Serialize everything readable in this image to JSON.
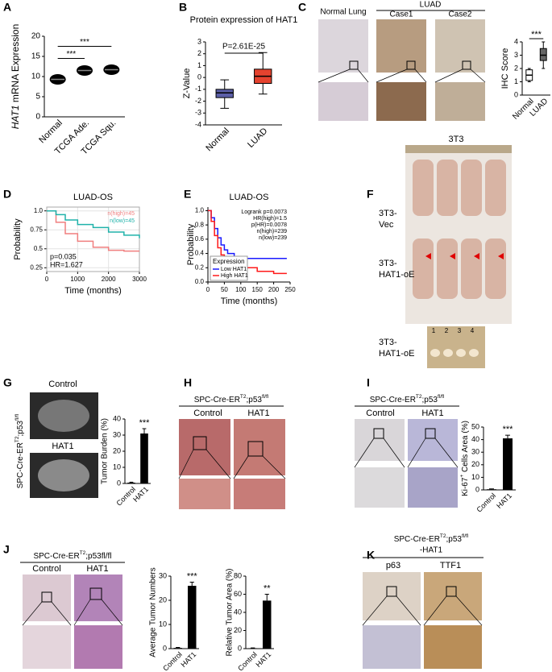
{
  "panels": {
    "A": {
      "letter": "A",
      "chart": {
        "type": "dot",
        "ylabel": [
          "HAT1",
          " mRNA Expression"
        ],
        "categories": [
          "Normal",
          "TCGA Ade.",
          "TCGA Squ."
        ],
        "values": [
          9.3,
          11.5,
          11.7
        ],
        "ylim": [
          0,
          20
        ],
        "yticks": [
          0,
          5,
          10,
          15,
          20
        ],
        "significance": [
          "***",
          "***"
        ]
      }
    },
    "B": {
      "letter": "B",
      "chart": {
        "type": "box",
        "title": "Protein expression of HAT1",
        "ylabel": "Z-Value",
        "annotation": "P=2.61E-25",
        "categories": [
          "Normal",
          "LUAD"
        ],
        "colors": [
          "#5c5fa8",
          "#e5432f"
        ],
        "boxes": [
          {
            "low": -2.6,
            "q1": -1.7,
            "median": -1.3,
            "q3": -1.0,
            "high": -0.2
          },
          {
            "low": -1.4,
            "q1": -0.5,
            "median": 0.1,
            "q3": 0.7,
            "high": 2.1
          }
        ],
        "ylim": [
          -4,
          3
        ],
        "yticks": [
          3,
          2,
          1,
          0,
          -1,
          -2,
          -3,
          -4
        ]
      }
    },
    "C": {
      "letter": "C",
      "normal": "Normal Lung",
      "luad": "LUAD",
      "case1": "Case1",
      "case2": "Case2",
      "chart": {
        "type": "box",
        "ylabel": "IHC Score",
        "categories": [
          "Normal",
          "LUAD"
        ],
        "colors": [
          "#ffffff",
          "#666666"
        ],
        "boxes": [
          {
            "low": 1.0,
            "q1": 1.1,
            "median": 1.5,
            "q3": 1.9,
            "high": 2.0
          },
          {
            "low": 2.0,
            "q1": 2.6,
            "median": 3.0,
            "q3": 3.5,
            "high": 4.0
          }
        ],
        "ylim": [
          0,
          4
        ],
        "yticks": [
          0,
          1,
          2,
          3,
          4
        ],
        "significance": "***"
      }
    },
    "D": {
      "letter": "D",
      "chart": {
        "type": "km",
        "title": "LUAD-OS",
        "xlabel": "Time (months)",
        "ylabel": "Probability",
        "xlim": [
          0,
          3000
        ],
        "xticks": [
          0,
          1000,
          2000,
          3000
        ],
        "ylim": [
          0.2,
          1.05
        ],
        "yticks": [
          {
            "value": 1,
            "label": "1.0"
          },
          0.75,
          0.5,
          0.25
        ],
        "grid": true,
        "series": [
          {
            "name": "n(high)=45",
            "color": "#f07f7f",
            "x": [
              0,
              300,
              600,
              1000,
              1500,
              2000,
              2500,
              3000
            ],
            "values": [
              1,
              0.85,
              0.7,
              0.6,
              0.52,
              0.48,
              0.47,
              0.47
            ]
          },
          {
            "name": "n(low)=45",
            "color": "#20b2aa",
            "x": [
              0,
              300,
              600,
              1000,
              1500,
              2000,
              2500,
              3000
            ],
            "values": [
              1,
              0.95,
              0.88,
              0.82,
              0.78,
              0.72,
              0.68,
              0.64
            ]
          }
        ],
        "annotations": [
          "p=0.035",
          "HR=1.627"
        ]
      }
    },
    "E": {
      "letter": "E",
      "chart": {
        "type": "km",
        "title": "LUAD-OS",
        "xlabel": "Time (months)",
        "ylabel": "Probability",
        "xlim": [
          0,
          250
        ],
        "xticks": [
          0,
          50,
          100,
          150,
          200,
          250
        ],
        "ylim": [
          0,
          1.05
        ],
        "yticks": [
          {
            "value": 0,
            "label": "0.0"
          },
          0.2,
          0.4,
          0.6,
          0.8,
          {
            "value": 1,
            "label": "1.0"
          }
        ],
        "legend_title": "Expression",
        "series": [
          {
            "name": "Low HAT1",
            "color": "#1a1aff",
            "x": [
              0,
              10,
              20,
              30,
              40,
              50,
              60,
              80,
              100,
              150,
              240
            ],
            "values": [
              1,
              0.9,
              0.75,
              0.62,
              0.52,
              0.45,
              0.4,
              0.35,
              0.33,
              0.33,
              0.33
            ]
          },
          {
            "name": "High HAT1",
            "color": "#ff1a1a",
            "x": [
              0,
              10,
              20,
              30,
              40,
              50,
              60,
              80,
              100,
              150,
              200,
              240
            ],
            "values": [
              1,
              0.85,
              0.65,
              0.48,
              0.38,
              0.3,
              0.25,
              0.22,
              0.2,
              0.15,
              0.12,
              0.12
            ]
          }
        ],
        "annotations": [
          "Logrank p=0.0073",
          "HR(high)=1.5",
          "p(HR)=0.0078",
          "n(high)=239",
          "n(low)=239"
        ]
      }
    },
    "F": {
      "letter": "F",
      "title": "3T3",
      "vec_label": [
        "3T3-",
        "Vec"
      ],
      "oe_label": [
        "3T3-",
        "HAT1-oE"
      ],
      "tumor_label": [
        "3T3-",
        "HAT1-oE"
      ],
      "ruler": [
        "1",
        "2",
        "3",
        "4"
      ]
    },
    "G": {
      "letter": "G",
      "control": "Control",
      "hat1": "HAT1",
      "genotype": [
        "SPC-Cre-ER",
        "T2",
        ";p53",
        "fl/fl"
      ],
      "chart": {
        "type": "bar",
        "ylabel": "Tumor Burden (%)",
        "categories": [
          "Control",
          "HAT1"
        ],
        "values": [
          0.5,
          31
        ],
        "errors": [
          0.3,
          3
        ],
        "ylim": [
          0,
          40
        ],
        "yticks": [
          0,
          10,
          20,
          30,
          40
        ],
        "significance": "***",
        "color": "#000000"
      }
    },
    "H": {
      "letter": "H",
      "genotype": [
        "SPC-Cre-ER",
        "T2",
        ";p53",
        "fl/fl"
      ],
      "control": "Control",
      "hat1": "HAT1"
    },
    "I": {
      "letter": "I",
      "genotype": [
        "SPC-Cre-ER",
        "T2",
        ";p53",
        "fl/fl"
      ],
      "control": "Control",
      "hat1": "HAT1",
      "chart": {
        "type": "bar",
        "ylabel": [
          "Ki-67",
          "+",
          " Cells Area (%)"
        ],
        "categories": [
          "Control",
          "HAT1"
        ],
        "values": [
          0.5,
          41
        ],
        "errors": [
          0.3,
          2.5
        ],
        "ylim": [
          0,
          50
        ],
        "yticks": [
          0,
          10,
          20,
          30,
          40,
          50
        ],
        "significance": "***",
        "color": "#000000"
      }
    },
    "J": {
      "letter": "J",
      "genotype": [
        "SPC-Cre-ER",
        "T2",
        ";p53fl/fl"
      ],
      "control": "Control",
      "hat1": "HAT1",
      "charts": [
        {
          "type": "bar",
          "ylabel": "Average Tumor Numbers",
          "categories": [
            "Control",
            "HAT1"
          ],
          "values": [
            0.3,
            26
          ],
          "errors": [
            0.2,
            1.5
          ],
          "ylim": [
            0,
            30
          ],
          "yticks": [
            0,
            10,
            20,
            30
          ],
          "significance": "***",
          "color": "#000000"
        },
        {
          "type": "bar",
          "ylabel": "Relative Tumor Area (%)",
          "categories": [
            "Control",
            "HAT1"
          ],
          "values": [
            0.5,
            53
          ],
          "errors": [
            0.3,
            7
          ],
          "ylim": [
            0,
            80
          ],
          "yticks": [
            0,
            20,
            40,
            60,
            80
          ],
          "significance": "**",
          "color": "#000000"
        }
      ]
    },
    "K": {
      "letter": "K",
      "genotype": [
        "SPC-Cre-ER",
        "T2",
        ";p53",
        "fl/fl"
      ],
      "genotype2": "-HAT1",
      "p63": "p63",
      "ttf1": "TTF1"
    }
  }
}
